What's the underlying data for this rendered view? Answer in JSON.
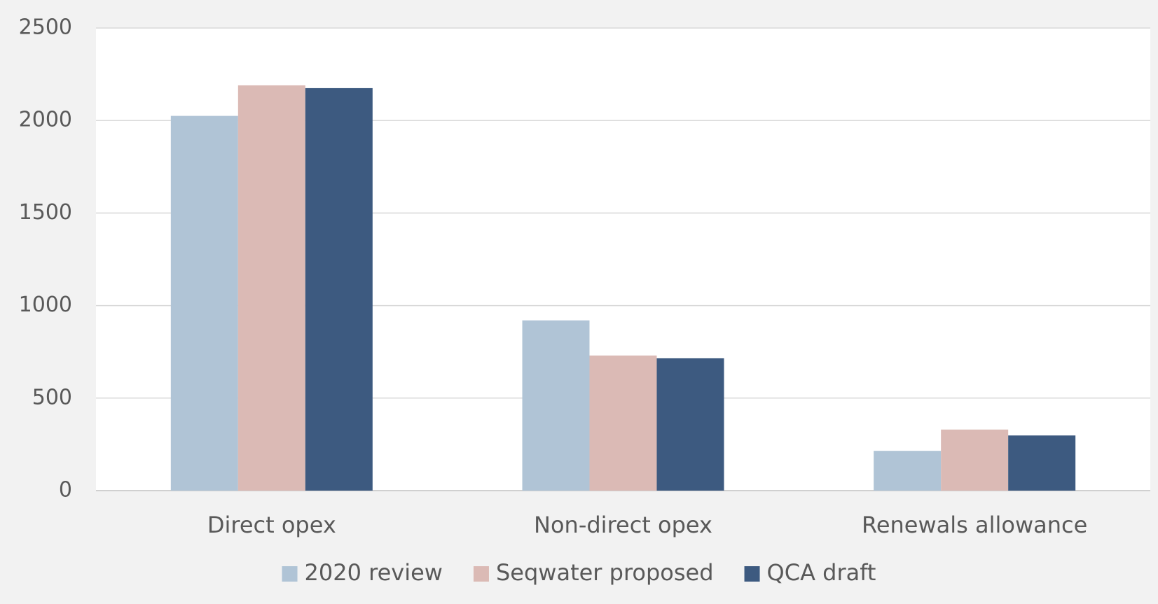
{
  "chart_data": {
    "type": "bar",
    "categories": [
      "Direct opex",
      "Non-direct opex",
      "Renewals allowance"
    ],
    "series": [
      {
        "name": "2020 review",
        "values": [
          2025,
          920,
          215
        ],
        "color": "#b0c4d6"
      },
      {
        "name": "Seqwater proposed",
        "values": [
          2190,
          730,
          330
        ],
        "color": "#dbbab5"
      },
      {
        "name": "QCA draft",
        "values": [
          2175,
          715,
          298
        ],
        "color": "#3d5a80"
      }
    ],
    "title": "",
    "xlabel": "",
    "ylabel": "",
    "ylim": [
      0,
      2500
    ],
    "yticks": [
      0,
      500,
      1000,
      1500,
      2000,
      2500
    ],
    "grid": true,
    "legend_position": "bottom",
    "colors": {
      "background": "#f2f2f2",
      "plot_background": "#ffffff",
      "gridline": "#d9d9d9",
      "text": "#595959"
    }
  }
}
